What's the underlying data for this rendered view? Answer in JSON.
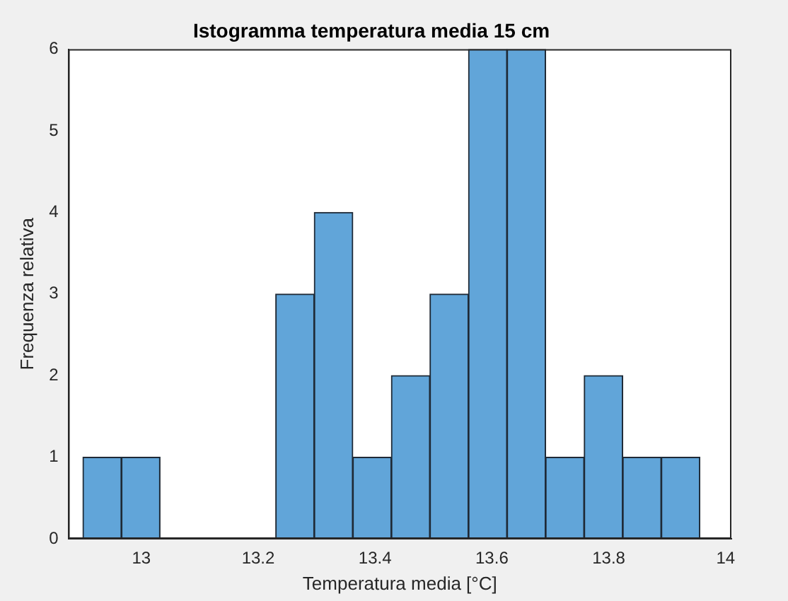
{
  "chart_data": {
    "type": "histogram",
    "title": "Istogramma temperatura media 15 cm",
    "xlabel": "Temperatura media [°C]",
    "ylabel": "Frequenza relativa",
    "bins": [
      12.9,
      12.966,
      13.032,
      13.098,
      13.164,
      13.23,
      13.296,
      13.362,
      13.428,
      13.494,
      13.56,
      13.626,
      13.692,
      13.758,
      13.824,
      13.89,
      13.956
    ],
    "values": [
      1,
      1,
      0,
      0,
      0,
      3,
      4,
      1,
      2,
      3,
      6,
      6,
      1,
      2,
      1,
      1
    ],
    "color": "#61a5d9",
    "xlim": [
      12.875,
      14.01
    ],
    "xticks": [
      13,
      13.2,
      13.4,
      13.6,
      13.8,
      14
    ],
    "ylim": [
      0,
      6
    ],
    "yticks": [
      0,
      1,
      2,
      3,
      4,
      5,
      6
    ],
    "grid": false,
    "legend": false
  }
}
